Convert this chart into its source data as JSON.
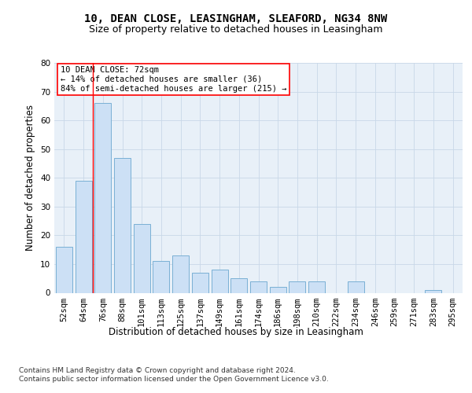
{
  "title_line1": "10, DEAN CLOSE, LEASINGHAM, SLEAFORD, NG34 8NW",
  "title_line2": "Size of property relative to detached houses in Leasingham",
  "xlabel": "Distribution of detached houses by size in Leasingham",
  "ylabel": "Number of detached properties",
  "categories": [
    "52sqm",
    "64sqm",
    "76sqm",
    "88sqm",
    "101sqm",
    "113sqm",
    "125sqm",
    "137sqm",
    "149sqm",
    "161sqm",
    "174sqm",
    "186sqm",
    "198sqm",
    "210sqm",
    "222sqm",
    "234sqm",
    "246sqm",
    "259sqm",
    "271sqm",
    "283sqm",
    "295sqm"
  ],
  "values": [
    16,
    39,
    66,
    47,
    24,
    11,
    13,
    7,
    8,
    5,
    4,
    2,
    4,
    4,
    0,
    4,
    0,
    0,
    0,
    1,
    0
  ],
  "bar_color": "#cce0f5",
  "bar_edge_color": "#7ab0d4",
  "annotation_text": "10 DEAN CLOSE: 72sqm\n← 14% of detached houses are smaller (36)\n84% of semi-detached houses are larger (215) →",
  "annotation_box_color": "white",
  "annotation_box_edge_color": "red",
  "vline_color": "red",
  "vline_x": 1.5,
  "ylim": [
    0,
    80
  ],
  "yticks": [
    0,
    10,
    20,
    30,
    40,
    50,
    60,
    70,
    80
  ],
  "grid_color": "#c8d8e8",
  "background_color": "#e8f0f8",
  "footer_text": "Contains HM Land Registry data © Crown copyright and database right 2024.\nContains public sector information licensed under the Open Government Licence v3.0.",
  "title_fontsize": 10,
  "subtitle_fontsize": 9,
  "axis_label_fontsize": 8.5,
  "tick_fontsize": 7.5,
  "annotation_fontsize": 7.5,
  "footer_fontsize": 6.5
}
